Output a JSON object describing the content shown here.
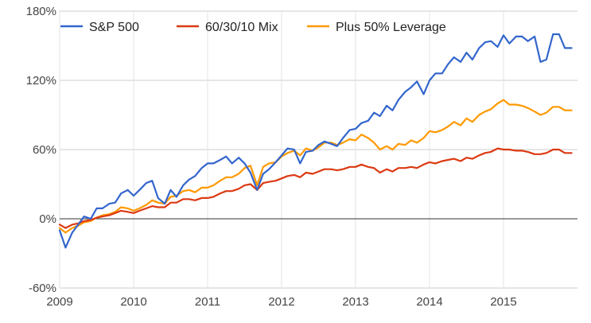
{
  "chart_data": {
    "type": "line",
    "title": "",
    "xlabel": "",
    "ylabel": "",
    "ylim": [
      -60,
      180
    ],
    "xlim": [
      2009,
      2016
    ],
    "y_ticks": [
      -60,
      0,
      60,
      120,
      180
    ],
    "y_tick_labels": [
      "-60%",
      "0%",
      "60%",
      "120%",
      "180%"
    ],
    "x_ticks": [
      2009,
      2010,
      2011,
      2012,
      2013,
      2014,
      2015
    ],
    "x_tick_labels": [
      "2009",
      "2010",
      "2011",
      "2012",
      "2013",
      "2014",
      "2015"
    ],
    "grid": true,
    "legend_position": "top",
    "zero_line": true,
    "series": [
      {
        "name": "S&P 500",
        "color": "#3366cc",
        "x": [
          2009.0,
          2009.08,
          2009.17,
          2009.25,
          2009.33,
          2009.42,
          2009.5,
          2009.58,
          2009.67,
          2009.75,
          2009.83,
          2009.92,
          2010.0,
          2010.08,
          2010.17,
          2010.25,
          2010.33,
          2010.42,
          2010.5,
          2010.58,
          2010.67,
          2010.75,
          2010.83,
          2010.92,
          2011.0,
          2011.08,
          2011.17,
          2011.25,
          2011.33,
          2011.42,
          2011.5,
          2011.58,
          2011.67,
          2011.75,
          2011.83,
          2011.92,
          2012.0,
          2012.08,
          2012.17,
          2012.25,
          2012.33,
          2012.42,
          2012.5,
          2012.58,
          2012.67,
          2012.75,
          2012.83,
          2012.92,
          2013.0,
          2013.08,
          2013.17,
          2013.25,
          2013.33,
          2013.42,
          2013.5,
          2013.58,
          2013.67,
          2013.75,
          2013.83,
          2013.92,
          2014.0,
          2014.08,
          2014.17,
          2014.25,
          2014.33,
          2014.42,
          2014.5,
          2014.58,
          2014.67,
          2014.75,
          2014.83,
          2014.92,
          2015.0,
          2015.08,
          2015.17,
          2015.25,
          2015.33,
          2015.42,
          2015.5,
          2015.58,
          2015.67,
          2015.75,
          2015.83,
          2015.92
        ],
        "values": [
          -10,
          -25,
          -12,
          -5,
          2,
          0,
          9,
          9,
          13,
          14,
          22,
          25,
          20,
          25,
          31,
          33,
          18,
          13,
          25,
          19,
          29,
          34,
          37,
          44,
          48,
          48,
          51,
          54,
          48,
          53,
          48,
          40,
          25,
          39,
          43,
          49,
          55,
          61,
          60,
          48,
          58,
          59,
          64,
          67,
          65,
          63,
          70,
          77,
          78,
          83,
          85,
          92,
          89,
          98,
          94,
          103,
          110,
          114,
          119,
          108,
          120,
          126,
          126,
          134,
          140,
          136,
          144,
          138,
          148,
          153,
          154,
          149,
          159,
          152,
          158,
          158,
          154,
          158,
          136,
          138,
          160,
          160,
          148,
          148
        ]
      },
      {
        "name": "60/30/10 Mix",
        "color": "#dc3912",
        "x": [
          2009.0,
          2009.08,
          2009.17,
          2009.25,
          2009.33,
          2009.42,
          2009.5,
          2009.58,
          2009.67,
          2009.75,
          2009.83,
          2009.92,
          2010.0,
          2010.08,
          2010.17,
          2010.25,
          2010.33,
          2010.42,
          2010.5,
          2010.58,
          2010.67,
          2010.75,
          2010.83,
          2010.92,
          2011.0,
          2011.08,
          2011.17,
          2011.25,
          2011.33,
          2011.42,
          2011.5,
          2011.58,
          2011.67,
          2011.75,
          2011.83,
          2011.92,
          2012.0,
          2012.08,
          2012.17,
          2012.25,
          2012.33,
          2012.42,
          2012.5,
          2012.58,
          2012.67,
          2012.75,
          2012.83,
          2012.92,
          2013.0,
          2013.08,
          2013.17,
          2013.25,
          2013.33,
          2013.42,
          2013.5,
          2013.58,
          2013.67,
          2013.75,
          2013.83,
          2013.92,
          2014.0,
          2014.08,
          2014.17,
          2014.25,
          2014.33,
          2014.42,
          2014.5,
          2014.58,
          2014.67,
          2014.75,
          2014.83,
          2014.92,
          2015.0,
          2015.08,
          2015.17,
          2015.25,
          2015.33,
          2015.42,
          2015.5,
          2015.58,
          2015.67,
          2015.75,
          2015.83,
          2015.92
        ],
        "values": [
          -5,
          -8,
          -5,
          -4,
          -2,
          -1,
          1,
          2,
          3,
          5,
          7,
          6,
          5,
          7,
          9,
          11,
          10,
          10,
          14,
          14,
          17,
          17,
          16,
          18,
          18,
          19,
          22,
          24,
          24,
          26,
          29,
          30,
          25,
          31,
          32,
          33,
          35,
          37,
          38,
          36,
          40,
          39,
          41,
          43,
          43,
          42,
          43,
          45,
          45,
          47,
          45,
          44,
          40,
          43,
          41,
          44,
          44,
          45,
          44,
          47,
          49,
          48,
          50,
          51,
          52,
          50,
          53,
          52,
          55,
          57,
          58,
          61,
          60,
          60,
          59,
          59,
          58,
          56,
          56,
          57,
          60,
          60,
          57,
          57
        ]
      },
      {
        "name": "Plus 50% Leverage",
        "color": "#ff9900",
        "x": [
          2009.0,
          2009.08,
          2009.17,
          2009.25,
          2009.33,
          2009.42,
          2009.5,
          2009.58,
          2009.67,
          2009.75,
          2009.83,
          2009.92,
          2010.0,
          2010.08,
          2010.17,
          2010.25,
          2010.33,
          2010.42,
          2010.5,
          2010.58,
          2010.67,
          2010.75,
          2010.83,
          2010.92,
          2011.0,
          2011.08,
          2011.17,
          2011.25,
          2011.33,
          2011.42,
          2011.5,
          2011.58,
          2011.67,
          2011.75,
          2011.83,
          2011.92,
          2012.0,
          2012.08,
          2012.17,
          2012.25,
          2012.33,
          2012.42,
          2012.5,
          2012.58,
          2012.67,
          2012.75,
          2012.83,
          2012.92,
          2013.0,
          2013.08,
          2013.17,
          2013.25,
          2013.33,
          2013.42,
          2013.5,
          2013.58,
          2013.67,
          2013.75,
          2013.83,
          2013.92,
          2014.0,
          2014.08,
          2014.17,
          2014.25,
          2014.33,
          2014.42,
          2014.5,
          2014.58,
          2014.67,
          2014.75,
          2014.83,
          2014.92,
          2015.0,
          2015.08,
          2015.17,
          2015.25,
          2015.33,
          2015.42,
          2015.5,
          2015.58,
          2015.67,
          2015.75,
          2015.83,
          2015.92
        ],
        "values": [
          -8,
          -12,
          -8,
          -6,
          -3,
          -2,
          1,
          3,
          4,
          6,
          10,
          9,
          7,
          9,
          12,
          16,
          14,
          13,
          19,
          20,
          24,
          25,
          23,
          27,
          27,
          29,
          33,
          36,
          36,
          39,
          44,
          46,
          29,
          45,
          48,
          49,
          54,
          57,
          59,
          55,
          61,
          59,
          62,
          66,
          66,
          64,
          66,
          69,
          68,
          73,
          70,
          66,
          60,
          63,
          60,
          65,
          64,
          68,
          66,
          70,
          76,
          75,
          77,
          80,
          84,
          81,
          87,
          84,
          90,
          93,
          95,
          100,
          103,
          99,
          99,
          98,
          96,
          93,
          90,
          92,
          97,
          97,
          94,
          94
        ]
      }
    ]
  }
}
